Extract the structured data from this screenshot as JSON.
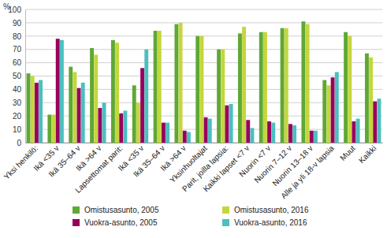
{
  "chart_data": {
    "type": "bar",
    "ylabel": "%",
    "categories": [
      "Yksi henkilö:",
      "Ikä <35 v",
      "Ikä 35–64 v",
      "Ikä >64 v",
      "Lapsettomat parit:",
      "Ikä <35 v",
      "Ikä 35–64 v",
      "Ikä >64 v",
      "Yksinhuoltajat",
      "Parit, joilla lapsia:",
      "Kaikki lapset <7 v",
      "Nuorin <7 v",
      "Nuorin 7–12 v",
      "Nuorin 13–18 v",
      "Alle ja yli 18-v lapsia",
      "Muut",
      "Kaikki"
    ],
    "series": [
      {
        "name": "Omistusasunto, 2005",
        "color": "#5ea834",
        "values": [
          52,
          21,
          57,
          71,
          77,
          43,
          84,
          89,
          80,
          70,
          82,
          83,
          86,
          91,
          47,
          83,
          67
        ]
      },
      {
        "name": "Omistusasunto, 2016",
        "color": "#c4d63c",
        "values": [
          50,
          21,
          53,
          66,
          75,
          30,
          84,
          90,
          80,
          70,
          87,
          83,
          86,
          89,
          43,
          80,
          64
        ]
      },
      {
        "name": "Vuokra-asunto, 2005",
        "color": "#99005e",
        "values": [
          45,
          78,
          41,
          26,
          22,
          56,
          15,
          9,
          19,
          28,
          17,
          16,
          14,
          9,
          49,
          16,
          31
        ]
      },
      {
        "name": "Vuokra-asunto, 2016",
        "color": "#4cbfbf",
        "values": [
          47,
          77,
          45,
          30,
          24,
          70,
          15,
          8,
          18,
          29,
          11,
          15,
          13,
          9,
          53,
          18,
          33
        ]
      }
    ],
    "ylim": [
      0,
      100
    ],
    "yticks": [
      0,
      10,
      20,
      30,
      40,
      50,
      60,
      70,
      80,
      90,
      100
    ],
    "grid": true,
    "legend": "bottom"
  }
}
